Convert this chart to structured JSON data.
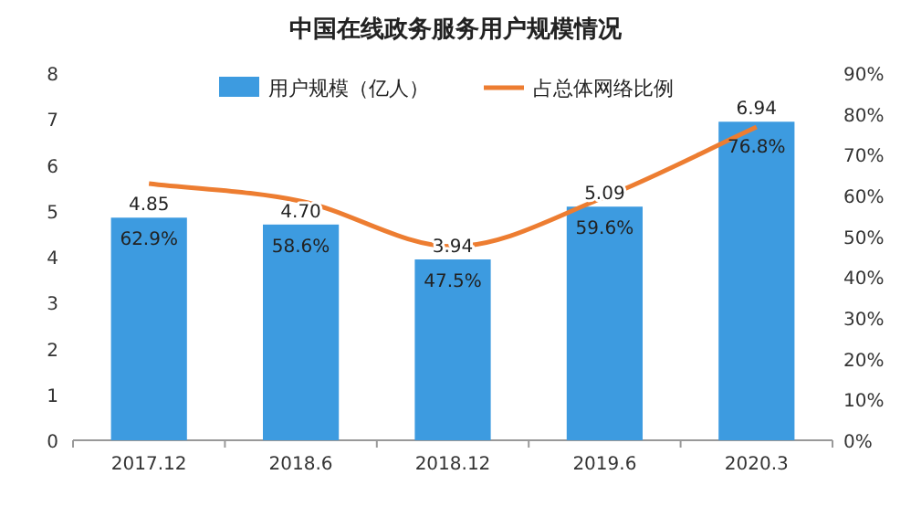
{
  "chart_data": {
    "type": "bar",
    "title": "中国在线政务服务用户规模情况",
    "categories": [
      "2017.12",
      "2018.6",
      "2018.12",
      "2019.6",
      "2020.3"
    ],
    "series": [
      {
        "name": "用户规模（亿人）",
        "color": "#3d9be0",
        "values": [
          4.85,
          4.7,
          3.94,
          5.09,
          6.94
        ],
        "value_labels": [
          "4.85",
          "4.70",
          "3.94",
          "5.09",
          "6.94"
        ]
      },
      {
        "name": "占总体网络比例",
        "type": "line",
        "axis": "y2",
        "color": "#ed7d31",
        "values": [
          62.9,
          58.6,
          47.5,
          59.6,
          76.8
        ],
        "value_labels": [
          "62.9%",
          "58.6%",
          "47.5%",
          "59.6%",
          "76.8%"
        ]
      }
    ],
    "ylim": [
      0,
      8
    ],
    "yticks": [
      0,
      1,
      2,
      3,
      4,
      5,
      6,
      7,
      8
    ],
    "y2lim": [
      0,
      90
    ],
    "y2ticks": [
      {
        "value": 0,
        "label": "0%"
      },
      {
        "value": 10,
        "label": "10%"
      },
      {
        "value": 20,
        "label": "20%"
      },
      {
        "value": 30,
        "label": "30%"
      },
      {
        "value": 40,
        "label": "40%"
      },
      {
        "value": 50,
        "label": "50%"
      },
      {
        "value": 60,
        "label": "60%"
      },
      {
        "value": 70,
        "label": "70%"
      },
      {
        "value": 80,
        "label": "80%"
      },
      {
        "value": 90,
        "label": "90%"
      }
    ],
    "legend": "top",
    "marker": "none",
    "line_style": "solid"
  }
}
